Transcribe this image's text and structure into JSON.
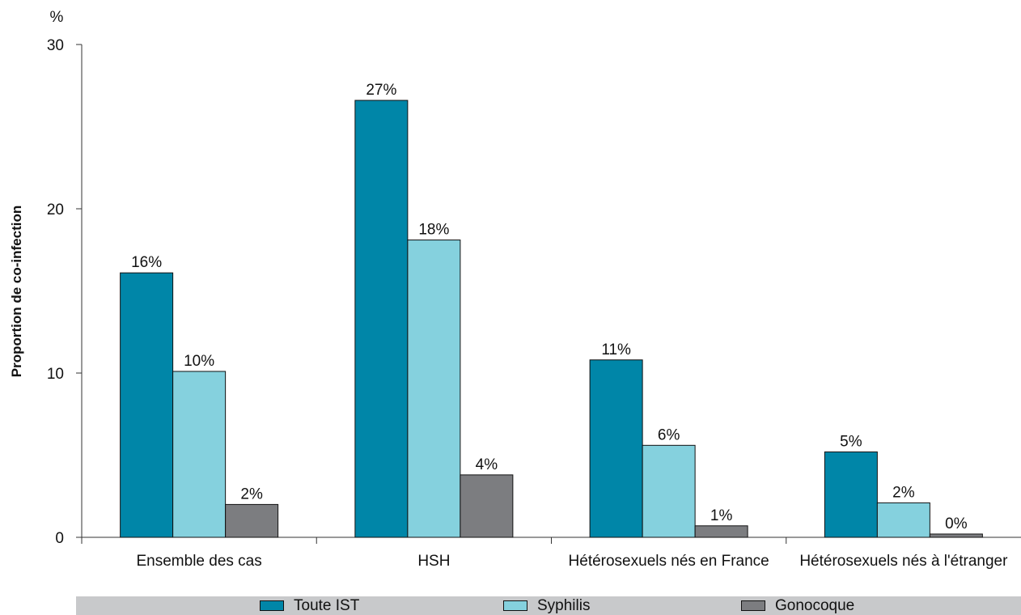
{
  "chart_data": {
    "type": "bar",
    "y_unit": "%",
    "ylabel": "Proportion de co-infection",
    "xlabel": "",
    "ylim": [
      0,
      30
    ],
    "yticks": [
      0,
      10,
      20,
      30
    ],
    "grid": false,
    "legend_position": "bottom",
    "categories": [
      "Ensemble des cas",
      "HSH",
      "Hétérosexuels nés en France",
      "Hétérosexuels nés à l'étranger"
    ],
    "series": [
      {
        "name": "Toute IST",
        "color": "#0086a8",
        "values": [
          16.1,
          26.6,
          10.8,
          5.2
        ],
        "labels": [
          "16%",
          "27%",
          "11%",
          "5%"
        ]
      },
      {
        "name": "Syphilis",
        "color": "#85d1de",
        "values": [
          10.1,
          18.1,
          5.6,
          2.1
        ],
        "labels": [
          "10%",
          "18%",
          "6%",
          "2%"
        ]
      },
      {
        "name": "Gonocoque",
        "color": "#7c7d80",
        "values": [
          2.0,
          3.8,
          0.7,
          0.2
        ],
        "labels": [
          "2%",
          "4%",
          "1%",
          "0%"
        ]
      }
    ]
  }
}
